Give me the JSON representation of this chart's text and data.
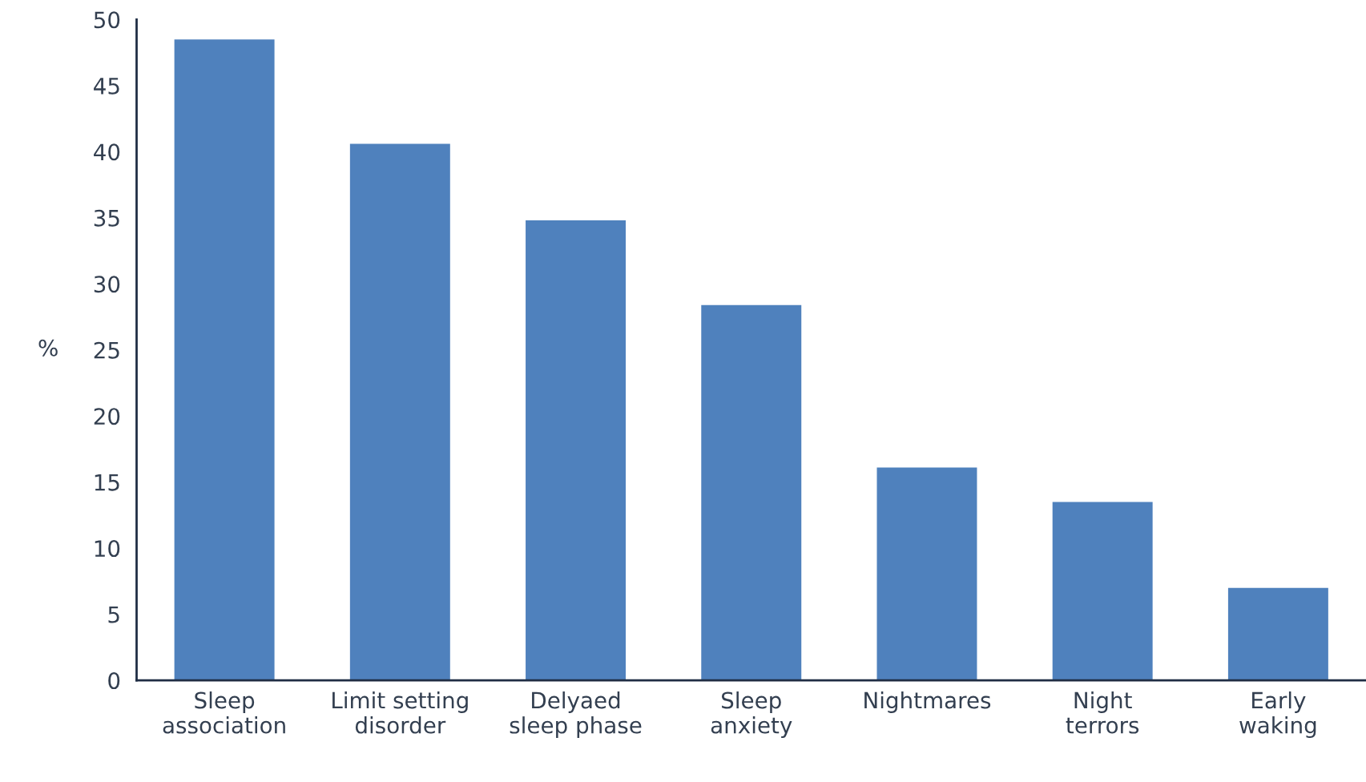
{
  "chart_data": {
    "type": "bar",
    "ylabel": "%",
    "categories": [
      "Sleep\nassociation",
      "Limit setting\ndisorder",
      "Delyaed\nsleep phase",
      "Sleep\nanxiety",
      "Nightmares",
      "Night\nterrors",
      "Early\nwaking"
    ],
    "values": [
      48.5,
      40.6,
      34.8,
      28.4,
      16.1,
      13.5,
      7.0
    ],
    "color": "#4f81bd",
    "ylim": [
      0,
      50
    ],
    "yticks": [
      0,
      5,
      10,
      15,
      20,
      25,
      30,
      35,
      40,
      45,
      50
    ],
    "grid": false,
    "legend": false
  }
}
